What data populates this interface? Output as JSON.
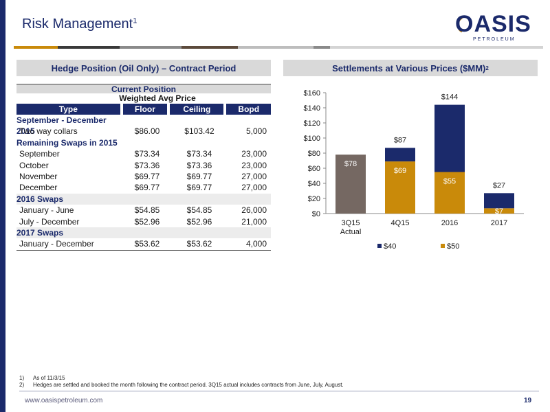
{
  "header": {
    "title": "Risk Management",
    "title_sup": "1"
  },
  "logo": {
    "word": "OASIS",
    "sub": "PETROLEUM"
  },
  "colors": {
    "navy": "#1b2a6b",
    "gold": "#c98a0a",
    "taupe": "#756862",
    "gray_head": "#d9d9d9"
  },
  "left_panel": {
    "heading": "Hedge Position (Oil Only) – Contract Period",
    "current_position": "Current Position",
    "weighted_avg_price": "Weighted Avg Price",
    "columns": [
      "Type",
      "Floor",
      "Ceiling",
      "Bopd"
    ],
    "rows": [
      {
        "kind": "section",
        "label": "September - December 2015"
      },
      {
        "kind": "data",
        "label": "Two way collars",
        "floor": "$86.00",
        "ceiling": "$103.42",
        "bopd": "5,000"
      },
      {
        "kind": "section",
        "label": "Remaining Swaps in 2015"
      },
      {
        "kind": "data",
        "label": "September",
        "floor": "$73.34",
        "ceiling": "$73.34",
        "bopd": "23,000"
      },
      {
        "kind": "data",
        "label": "October",
        "floor": "$73.36",
        "ceiling": "$73.36",
        "bopd": "23,000"
      },
      {
        "kind": "data",
        "label": "November",
        "floor": "$69.77",
        "ceiling": "$69.77",
        "bopd": "27,000"
      },
      {
        "kind": "data",
        "label": "December",
        "floor": "$69.77",
        "ceiling": "$69.77",
        "bopd": "27,000"
      },
      {
        "kind": "section",
        "label": "2016 Swaps",
        "shaded": true
      },
      {
        "kind": "data",
        "label": "January - June",
        "floor": "$54.85",
        "ceiling": "$54.85",
        "bopd": "26,000"
      },
      {
        "kind": "data",
        "label": "July - December",
        "floor": "$52.96",
        "ceiling": "$52.96",
        "bopd": "21,000"
      },
      {
        "kind": "section",
        "label": "2017 Swaps",
        "shaded": true
      },
      {
        "kind": "data",
        "label": "January - December",
        "floor": "$53.62",
        "ceiling": "$53.62",
        "bopd": "4,000"
      }
    ]
  },
  "right_panel": {
    "heading": "Settlements at Various Prices ($MM)",
    "heading_sup": "2"
  },
  "chart_data": {
    "type": "bar",
    "stacked": true,
    "categories": [
      "3Q15\nActual",
      "4Q15",
      "2016",
      "2017"
    ],
    "ylim": [
      0,
      160
    ],
    "yticks": [
      0,
      20,
      40,
      60,
      80,
      100,
      120,
      140,
      160
    ],
    "ytick_labels": [
      "$0",
      "$20",
      "$40",
      "$60",
      "$80",
      "$100",
      "$120",
      "$140",
      "$160"
    ],
    "actual": {
      "category": "3Q15\nActual",
      "value": 78,
      "label": "$78",
      "color": "#756862"
    },
    "series": [
      {
        "name": "$50",
        "color": "#c98a0a",
        "values": [
          null,
          69,
          55,
          7
        ],
        "labels": [
          "",
          "$69",
          "$55",
          "$7"
        ]
      },
      {
        "name": "$40",
        "color": "#1b2a6b",
        "values": [
          null,
          18,
          89,
          20
        ],
        "labels": [
          "",
          "",
          "",
          ""
        ]
      }
    ],
    "totals": [
      null,
      87,
      144,
      27
    ],
    "total_labels": [
      "",
      "$87",
      "$144",
      "$27"
    ],
    "legend": {
      "placement": "bottom",
      "order": [
        "$40",
        "$50"
      ]
    },
    "grid": false
  },
  "footnotes": [
    {
      "num": "1)",
      "text": "As of 11/3/15"
    },
    {
      "num": "2)",
      "text": "Hedges are settled and booked the month following the contract period.  3Q15 actual includes contracts from June, July, August."
    }
  ],
  "footer": {
    "url": "www.oasispetroleum.com",
    "page": "19"
  }
}
